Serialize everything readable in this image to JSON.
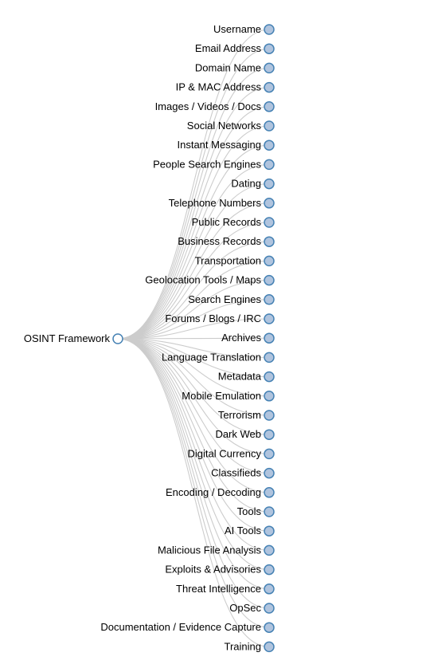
{
  "colors": {
    "link": "#cccccc",
    "node_stroke": "#4682b4",
    "collapsed_fill": "#b0c4de",
    "root_fill": "#ffffff",
    "label": "#000000",
    "background": "#ffffff"
  },
  "root": {
    "name": "OSINT Framework",
    "expanded": true
  },
  "children": [
    {
      "name": "Username",
      "collapsed": true
    },
    {
      "name": "Email Address",
      "collapsed": true
    },
    {
      "name": "Domain Name",
      "collapsed": true
    },
    {
      "name": "IP & MAC Address",
      "collapsed": true
    },
    {
      "name": "Images / Videos / Docs",
      "collapsed": true
    },
    {
      "name": "Social Networks",
      "collapsed": true
    },
    {
      "name": "Instant Messaging",
      "collapsed": true
    },
    {
      "name": "People Search Engines",
      "collapsed": true
    },
    {
      "name": "Dating",
      "collapsed": true
    },
    {
      "name": "Telephone Numbers",
      "collapsed": true
    },
    {
      "name": "Public Records",
      "collapsed": true
    },
    {
      "name": "Business Records",
      "collapsed": true
    },
    {
      "name": "Transportation",
      "collapsed": true
    },
    {
      "name": "Geolocation Tools / Maps",
      "collapsed": true
    },
    {
      "name": "Search Engines",
      "collapsed": true
    },
    {
      "name": "Forums / Blogs / IRC",
      "collapsed": true
    },
    {
      "name": "Archives",
      "collapsed": true
    },
    {
      "name": "Language Translation",
      "collapsed": true
    },
    {
      "name": "Metadata",
      "collapsed": true
    },
    {
      "name": "Mobile Emulation",
      "collapsed": true
    },
    {
      "name": "Terrorism",
      "collapsed": true
    },
    {
      "name": "Dark Web",
      "collapsed": true
    },
    {
      "name": "Digital Currency",
      "collapsed": true
    },
    {
      "name": "Classifieds",
      "collapsed": true
    },
    {
      "name": "Encoding / Decoding",
      "collapsed": true
    },
    {
      "name": "Tools",
      "collapsed": true
    },
    {
      "name": "AI Tools",
      "collapsed": true
    },
    {
      "name": "Malicious File Analysis",
      "collapsed": true
    },
    {
      "name": "Exploits & Advisories",
      "collapsed": true
    },
    {
      "name": "Threat Intelligence",
      "collapsed": true
    },
    {
      "name": "OpSec",
      "collapsed": true
    },
    {
      "name": "Documentation / Evidence Capture",
      "collapsed": true
    },
    {
      "name": "Training",
      "collapsed": true
    }
  ]
}
